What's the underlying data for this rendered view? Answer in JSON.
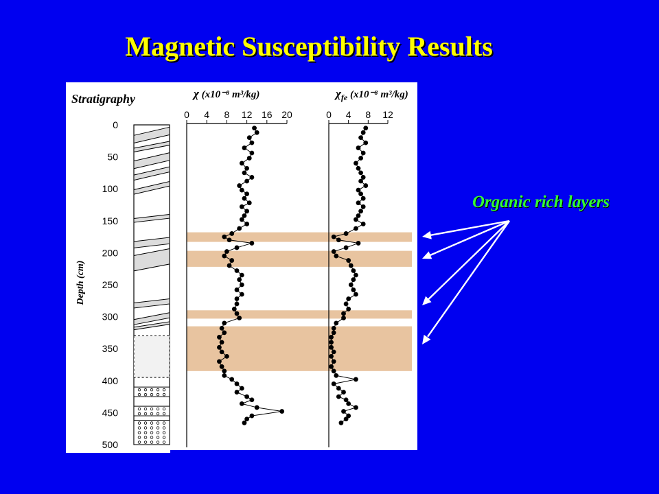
{
  "slide": {
    "title": "Magnetic Susceptibility Results",
    "annotation": "Organic rich layers",
    "annotation_color": "#33ff33",
    "title_color": "#ffff00",
    "background": "#0000f0",
    "band_color": "#e8c4a0"
  },
  "chart_data": {
    "type": "scatter",
    "orientation": "depth-profile",
    "depth_axis": {
      "label": "Depth (cm)",
      "range": [
        0,
        500
      ],
      "ticks": [
        0,
        50,
        100,
        150,
        200,
        250,
        300,
        350,
        400,
        450,
        500
      ]
    },
    "stratigraphy_label": "Stratigraphy",
    "organic_rich_layers_depth": [
      [
        168,
        183
      ],
      [
        197,
        222
      ],
      [
        290,
        303
      ],
      [
        315,
        385
      ]
    ],
    "panels": [
      {
        "label_symbol": "χ",
        "label_units": " (x10⁻⁸ m³/kg)",
        "range": [
          0,
          20
        ],
        "ticks": [
          0,
          4,
          8,
          12,
          16,
          20
        ],
        "depth": [
          5,
          12,
          20,
          28,
          36,
          44,
          52,
          60,
          68,
          75,
          82,
          88,
          95,
          102,
          108,
          115,
          122,
          128,
          135,
          142,
          148,
          155,
          162,
          170,
          175,
          180,
          185,
          192,
          198,
          205,
          212,
          220,
          228,
          235,
          242,
          250,
          258,
          265,
          272,
          280,
          288,
          295,
          302,
          310,
          318,
          325,
          332,
          340,
          348,
          355,
          362,
          370,
          378,
          385,
          392,
          398,
          405,
          412,
          418,
          425,
          430,
          436,
          442,
          448,
          455,
          460,
          466
        ],
        "values": [
          13.5,
          14,
          12.5,
          13,
          11.5,
          13,
          12.5,
          11,
          12,
          11.5,
          13,
          12,
          10.5,
          11,
          12,
          11.5,
          12.5,
          11,
          12,
          11.5,
          11,
          12,
          10.5,
          9,
          7.5,
          8.5,
          13,
          10,
          8,
          7.5,
          9,
          8.5,
          10,
          11,
          10.5,
          11,
          10,
          11,
          10,
          10,
          9.5,
          10,
          10.5,
          7.5,
          7,
          7.5,
          6.5,
          7,
          6.5,
          7,
          8,
          6.5,
          7,
          7.5,
          7.5,
          9,
          10,
          11,
          10,
          12,
          13,
          11,
          14,
          19,
          13,
          12,
          11.5
        ]
      },
      {
        "label_symbol": "χ",
        "label_sub": "fe",
        "label_units": " (x10⁻⁸ m³/kg)",
        "range": [
          0,
          12
        ],
        "ticks": [
          0,
          4,
          8,
          12
        ],
        "depth": [
          5,
          12,
          20,
          28,
          36,
          44,
          52,
          60,
          68,
          75,
          82,
          88,
          95,
          102,
          108,
          115,
          122,
          128,
          135,
          142,
          148,
          155,
          162,
          170,
          175,
          180,
          185,
          192,
          198,
          205,
          212,
          220,
          228,
          235,
          242,
          250,
          258,
          265,
          272,
          280,
          288,
          295,
          302,
          310,
          318,
          325,
          332,
          340,
          348,
          355,
          362,
          370,
          378,
          385,
          392,
          398,
          405,
          412,
          418,
          425,
          430,
          436,
          442,
          448,
          455,
          460,
          466
        ],
        "values": [
          7.5,
          7,
          6.5,
          7.5,
          6,
          7,
          6.5,
          5.5,
          6,
          6.5,
          7,
          6.5,
          7.5,
          6,
          6.5,
          7,
          6,
          7,
          6.5,
          6,
          5.5,
          7,
          5.5,
          3.5,
          1,
          2,
          6,
          3.5,
          1,
          1.5,
          4,
          4.5,
          5,
          5.5,
          5,
          4.5,
          5,
          5.5,
          4,
          3.5,
          4,
          3,
          3,
          1.5,
          1,
          1,
          0.5,
          0.5,
          0.5,
          1,
          0.5,
          1,
          0.5,
          1,
          1.5,
          5.5,
          1,
          2,
          3,
          2,
          3.5,
          4,
          5.5,
          3,
          4,
          3.5,
          2.5
        ]
      }
    ]
  }
}
